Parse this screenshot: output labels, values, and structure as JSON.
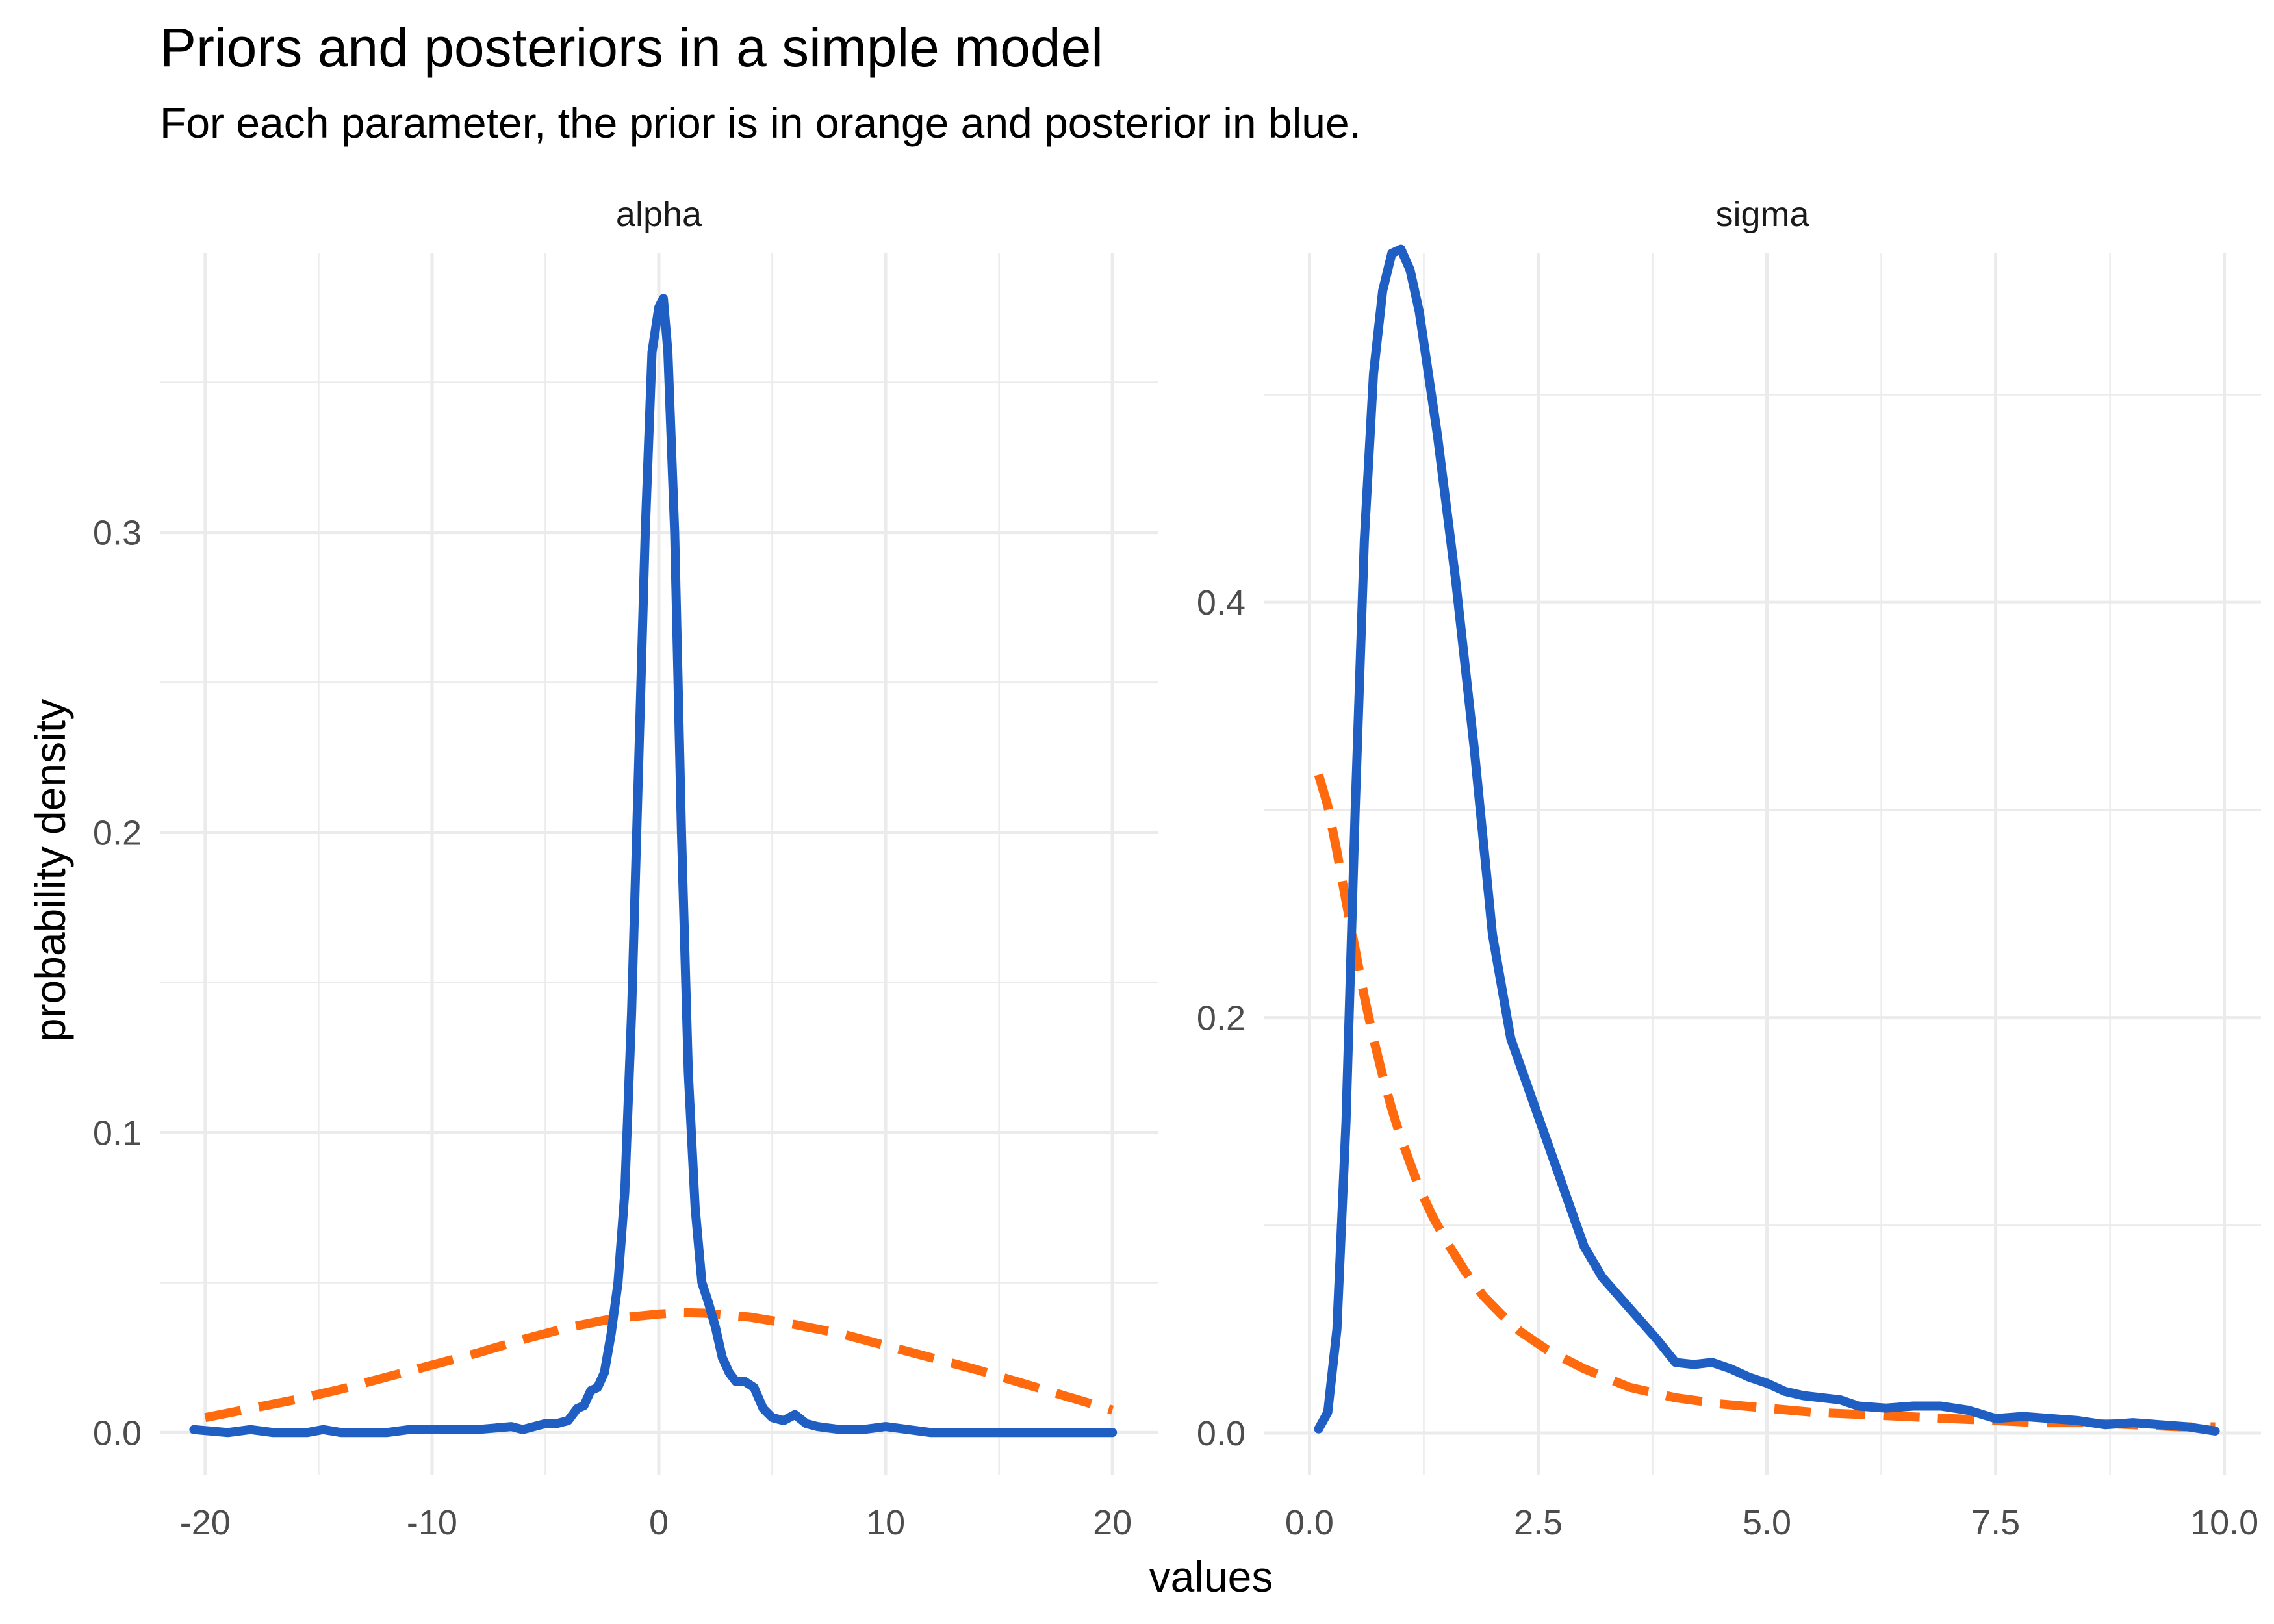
{
  "title": "Priors and posteriors in a simple model",
  "subtitle": "For each parameter, the prior is in orange and posterior in blue.",
  "xlabel": "values",
  "ylabel": "probability density",
  "colors": {
    "prior": "#ff6a0f",
    "posterior": "#1f5fc4"
  },
  "chart_data": [
    {
      "type": "line",
      "facet": "alpha",
      "xlim": [
        -22,
        22
      ],
      "ylim": [
        -0.014,
        0.393
      ],
      "x_ticks": [
        -20,
        -10,
        0,
        10,
        20
      ],
      "x_tick_labels": [
        "-20",
        "-10",
        "0",
        "10",
        "20"
      ],
      "y_ticks": [
        0.0,
        0.1,
        0.2,
        0.3
      ],
      "y_tick_labels": [
        "0.0",
        "0.1",
        "0.2",
        "0.3"
      ],
      "series": [
        {
          "role": "posterior",
          "x": [
            -20.5,
            -19,
            -18,
            -17,
            -15.5,
            -14.8,
            -14,
            -12,
            -11,
            -9,
            -8,
            -6.5,
            -6,
            -5,
            -4.5,
            -4,
            -3.6,
            -3.3,
            -3,
            -2.7,
            -2.4,
            -2.1,
            -1.8,
            -1.5,
            -1.2,
            -0.9,
            -0.6,
            -0.3,
            0,
            0.2,
            0.4,
            0.7,
            1.0,
            1.3,
            1.6,
            1.9,
            2.2,
            2.5,
            2.8,
            3.1,
            3.4,
            3.8,
            4.2,
            4.6,
            5.0,
            5.5,
            6.0,
            6.5,
            7,
            8,
            9,
            10,
            11,
            12,
            14,
            16,
            18,
            20
          ],
          "y": [
            0.001,
            0.0,
            0.001,
            0.0,
            0.0,
            0.001,
            0.0,
            0.0,
            0.001,
            0.001,
            0.001,
            0.002,
            0.001,
            0.003,
            0.003,
            0.004,
            0.008,
            0.009,
            0.014,
            0.015,
            0.02,
            0.033,
            0.05,
            0.08,
            0.14,
            0.22,
            0.3,
            0.36,
            0.375,
            0.378,
            0.36,
            0.3,
            0.2,
            0.12,
            0.075,
            0.05,
            0.043,
            0.035,
            0.025,
            0.02,
            0.017,
            0.017,
            0.015,
            0.008,
            0.005,
            0.004,
            0.006,
            0.003,
            0.002,
            0.001,
            0.001,
            0.002,
            0.001,
            0.0,
            0.0,
            0.0,
            0.0,
            0.0
          ]
        },
        {
          "role": "prior",
          "x": [
            -20,
            -18,
            -16,
            -14,
            -12,
            -10,
            -8,
            -6,
            -4,
            -2,
            0,
            1,
            2,
            4,
            6,
            8,
            10,
            12,
            14,
            16,
            18,
            20
          ],
          "y": [
            0.005,
            0.008,
            0.011,
            0.0145,
            0.0185,
            0.0225,
            0.0265,
            0.031,
            0.035,
            0.038,
            0.0395,
            0.04,
            0.0398,
            0.0385,
            0.036,
            0.033,
            0.029,
            0.025,
            0.021,
            0.0165,
            0.012,
            0.0075
          ]
        }
      ]
    },
    {
      "type": "line",
      "facet": "sigma",
      "xlim": [
        -0.5,
        10.4
      ],
      "ylim": [
        -0.02,
        0.568
      ],
      "x_ticks": [
        0.0,
        2.5,
        5.0,
        7.5,
        10.0
      ],
      "x_tick_labels": [
        "0.0",
        "2.5",
        "5.0",
        "7.5",
        "10.0"
      ],
      "y_ticks": [
        0.0,
        0.2,
        0.4
      ],
      "y_tick_labels": [
        "0.0",
        "0.2",
        "0.4"
      ],
      "series": [
        {
          "role": "posterior",
          "x": [
            0.1,
            0.2,
            0.3,
            0.4,
            0.5,
            0.6,
            0.7,
            0.8,
            0.9,
            1.0,
            1.1,
            1.2,
            1.4,
            1.6,
            1.8,
            2.0,
            2.2,
            2.4,
            2.6,
            2.8,
            3.0,
            3.2,
            3.4,
            3.6,
            3.8,
            4.0,
            4.2,
            4.4,
            4.6,
            4.8,
            5.0,
            5.2,
            5.4,
            5.6,
            5.8,
            6.0,
            6.3,
            6.6,
            6.9,
            7.2,
            7.5,
            7.8,
            8.1,
            8.4,
            8.7,
            9.0,
            9.3,
            9.6,
            9.9
          ],
          "y": [
            0.002,
            0.01,
            0.05,
            0.15,
            0.3,
            0.43,
            0.51,
            0.55,
            0.568,
            0.57,
            0.56,
            0.54,
            0.48,
            0.41,
            0.33,
            0.24,
            0.19,
            0.165,
            0.14,
            0.115,
            0.09,
            0.075,
            0.065,
            0.055,
            0.045,
            0.034,
            0.033,
            0.034,
            0.031,
            0.027,
            0.024,
            0.02,
            0.018,
            0.017,
            0.016,
            0.013,
            0.012,
            0.013,
            0.013,
            0.011,
            0.007,
            0.008,
            0.007,
            0.006,
            0.004,
            0.005,
            0.004,
            0.003,
            0.001
          ]
        },
        {
          "role": "prior",
          "x": [
            0.1,
            0.2,
            0.3,
            0.4,
            0.5,
            0.6,
            0.7,
            0.8,
            0.9,
            1.0,
            1.1,
            1.2,
            1.35,
            1.5,
            1.7,
            1.9,
            2.1,
            2.3,
            2.6,
            3.0,
            3.5,
            4.0,
            4.5,
            5.0,
            5.5,
            6.0,
            6.5,
            7.0,
            7.5,
            8.0,
            8.5,
            9.0,
            9.5,
            9.9
          ],
          "y": [
            0.317,
            0.302,
            0.28,
            0.256,
            0.233,
            0.21,
            0.19,
            0.172,
            0.156,
            0.142,
            0.13,
            0.118,
            0.104,
            0.092,
            0.078,
            0.066,
            0.057,
            0.049,
            0.04,
            0.031,
            0.022,
            0.017,
            0.014,
            0.012,
            0.01,
            0.009,
            0.008,
            0.007,
            0.006,
            0.005,
            0.005,
            0.004,
            0.003,
            0.003
          ]
        }
      ]
    }
  ]
}
